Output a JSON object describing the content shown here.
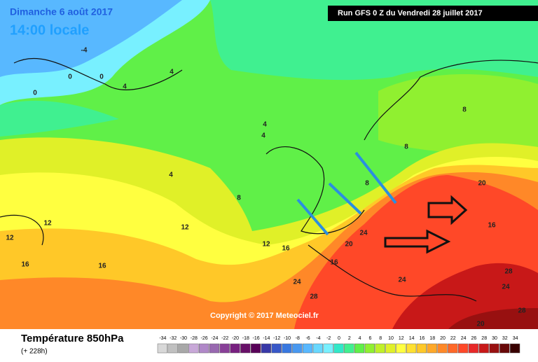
{
  "header": {
    "date": "Dimanche 6 août 2017",
    "time": "14:00 locale",
    "run": "Run GFS 0 Z du Vendredi 28 juillet 2017"
  },
  "copyright": "Copyright © 2017 Meteociel.fr",
  "legend": {
    "title": "Température 850hPa",
    "lead": "(+ 228h)",
    "values": [
      -34,
      -32,
      -30,
      -28,
      -26,
      -24,
      -22,
      -20,
      -18,
      -16,
      -14,
      -12,
      -10,
      -8,
      -6,
      -4,
      -2,
      0,
      2,
      4,
      6,
      8,
      10,
      12,
      14,
      16,
      18,
      20,
      22,
      24,
      26,
      28,
      30,
      32,
      34
    ],
    "colors": [
      "#d8d8d8",
      "#c0c0c0",
      "#a8a8a8",
      "#c8a8d8",
      "#b088c8",
      "#9868b0",
      "#884098",
      "#782080",
      "#681068",
      "#580058",
      "#3838a8",
      "#3858c8",
      "#3878e0",
      "#4898f0",
      "#58b8ff",
      "#68d8ff",
      "#78f0ff",
      "#30e8c8",
      "#40f090",
      "#60f048",
      "#90f030",
      "#c0f028",
      "#e0f028",
      "#ffff40",
      "#ffe030",
      "#ffc828",
      "#ffa828",
      "#ff8828",
      "#ff6828",
      "#ff4828",
      "#e82828",
      "#c81818",
      "#981010",
      "#680808",
      "#380000"
    ]
  },
  "contour_labels": [
    "-4",
    "0",
    "0",
    "0",
    "4",
    "4",
    "4",
    "4",
    "4",
    "8",
    "8",
    "8",
    "12",
    "12",
    "12",
    "12",
    "16",
    "16",
    "16",
    "16",
    "20",
    "20",
    "24",
    "24",
    "24",
    "28",
    "28",
    "20",
    "28",
    "24",
    "16",
    "8"
  ]
}
